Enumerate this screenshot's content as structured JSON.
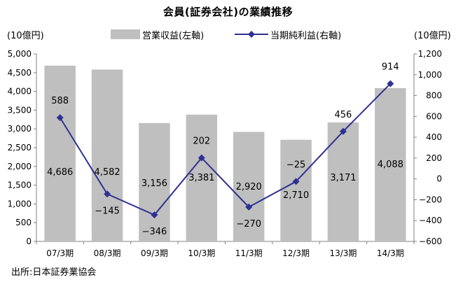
{
  "chart_data": {
    "type": "bar+line",
    "title": "会員(証券会社)の業績推移",
    "unit_left": "(10億円)",
    "unit_right": "(10億円)",
    "source": "出所:日本証券業協会",
    "categories": [
      "07/3期",
      "08/3期",
      "09/3期",
      "10/3期",
      "11/3期",
      "12/3期",
      "13/3期",
      "14/3期"
    ],
    "series": [
      {
        "name": "営業収益(左軸)",
        "type": "bar",
        "axis": "left",
        "color": "#bfbfbf",
        "values": [
          4686,
          4582,
          3156,
          3381,
          2920,
          2710,
          3171,
          4088
        ],
        "labels": [
          "4,686",
          "4,582",
          "3,156",
          "3,381",
          "2,920",
          "2,710",
          "3,171",
          "4,088"
        ]
      },
      {
        "name": "当期純利益(右軸)",
        "type": "line",
        "axis": "right",
        "color": "#2e3192",
        "marker": "diamond",
        "values": [
          588,
          -145,
          -346,
          202,
          -270,
          -25,
          456,
          914
        ],
        "labels": [
          "588",
          "−145",
          "−346",
          "202",
          "−270",
          "−25",
          "456",
          "914"
        ]
      }
    ],
    "left_axis": {
      "ylim": [
        0,
        5000
      ],
      "ticks": [
        "0",
        "500",
        "1,000",
        "1,500",
        "2,000",
        "2,500",
        "3,000",
        "3,500",
        "4,000",
        "4,500",
        "5,000"
      ]
    },
    "right_axis": {
      "ylim": [
        -600,
        1200
      ],
      "ticks": [
        "−600",
        "−400",
        "−200",
        "0",
        "200",
        "400",
        "600",
        "800",
        "1,000",
        "1,200"
      ]
    },
    "grid": false,
    "legend": "top"
  }
}
